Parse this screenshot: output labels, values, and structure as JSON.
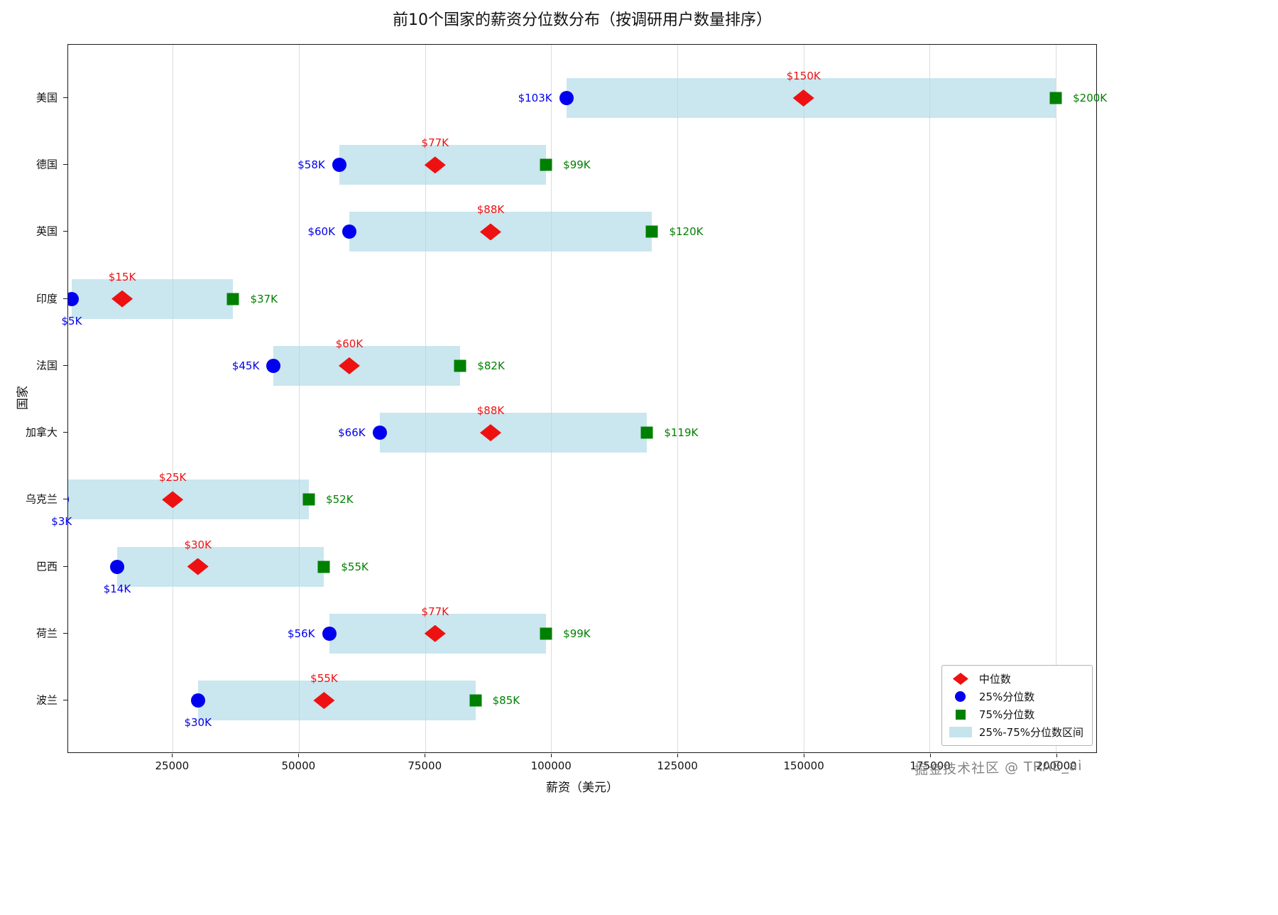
{
  "chart_data": {
    "type": "bar",
    "subtype": "horizontal-percentile-range",
    "title": "前10个国家的薪资分位数分布（按调研用户数量排序）",
    "xlabel": "薪资（美元）",
    "ylabel": "国家",
    "xlim": [
      4300,
      208000
    ],
    "xticks": [
      25000,
      50000,
      75000,
      100000,
      125000,
      150000,
      175000,
      200000
    ],
    "xtick_labels": [
      "25000",
      "50000",
      "75000",
      "100000",
      "125000",
      "150000",
      "175000",
      "200000"
    ],
    "grid": "vertical",
    "legend_position": "lower right",
    "countries": [
      {
        "name": "美国",
        "p25": 103000,
        "median": 150000,
        "p75": 200000,
        "p25_label": "$103K",
        "median_label": "$150K",
        "p75_label": "$200K",
        "p25_label_pos": "left"
      },
      {
        "name": "德国",
        "p25": 58000,
        "median": 77000,
        "p75": 99000,
        "p25_label": "$58K",
        "median_label": "$77K",
        "p75_label": "$99K",
        "p25_label_pos": "left"
      },
      {
        "name": "英国",
        "p25": 60000,
        "median": 88000,
        "p75": 120000,
        "p25_label": "$60K",
        "median_label": "$88K",
        "p75_label": "$120K",
        "p25_label_pos": "left"
      },
      {
        "name": "印度",
        "p25": 5000,
        "median": 15000,
        "p75": 37000,
        "p25_label": "$5K",
        "median_label": "$15K",
        "p75_label": "$37K",
        "p25_label_pos": "below"
      },
      {
        "name": "法国",
        "p25": 45000,
        "median": 60000,
        "p75": 82000,
        "p25_label": "$45K",
        "median_label": "$60K",
        "p75_label": "$82K",
        "p25_label_pos": "left"
      },
      {
        "name": "加拿大",
        "p25": 66000,
        "median": 88000,
        "p75": 119000,
        "p25_label": "$66K",
        "median_label": "$88K",
        "p75_label": "$119K",
        "p25_label_pos": "left"
      },
      {
        "name": "乌克兰",
        "p25": 3000,
        "median": 25000,
        "p75": 52000,
        "p25_label": "$3K",
        "median_label": "$25K",
        "p75_label": "$52K",
        "p25_label_pos": "below"
      },
      {
        "name": "巴西",
        "p25": 14000,
        "median": 30000,
        "p75": 55000,
        "p25_label": "$14K",
        "median_label": "$30K",
        "p75_label": "$55K",
        "p25_label_pos": "below"
      },
      {
        "name": "荷兰",
        "p25": 56000,
        "median": 77000,
        "p75": 99000,
        "p25_label": "$56K",
        "median_label": "$77K",
        "p75_label": "$99K",
        "p25_label_pos": "left"
      },
      {
        "name": "波兰",
        "p25": 30000,
        "median": 55000,
        "p75": 85000,
        "p25_label": "$30K",
        "median_label": "$55K",
        "p75_label": "$85K",
        "p25_label_pos": "below"
      }
    ],
    "legend": [
      {
        "label": "中位数",
        "marker": "diamond",
        "color_key": "median"
      },
      {
        "label": "25%分位数",
        "marker": "circle",
        "color_key": "p25"
      },
      {
        "label": "75%分位数",
        "marker": "square",
        "color_key": "p75"
      },
      {
        "label": "25%-75%分位数区间",
        "marker": "band",
        "color_key": "band"
      }
    ],
    "colors": {
      "median": "#ee1111",
      "p25": "#0000ee",
      "p75": "#008000",
      "band": "#add8e6",
      "grid": "#dcdcdc"
    }
  },
  "watermark": {
    "text": "掘金技术社区 @ TRAE_ai"
  }
}
